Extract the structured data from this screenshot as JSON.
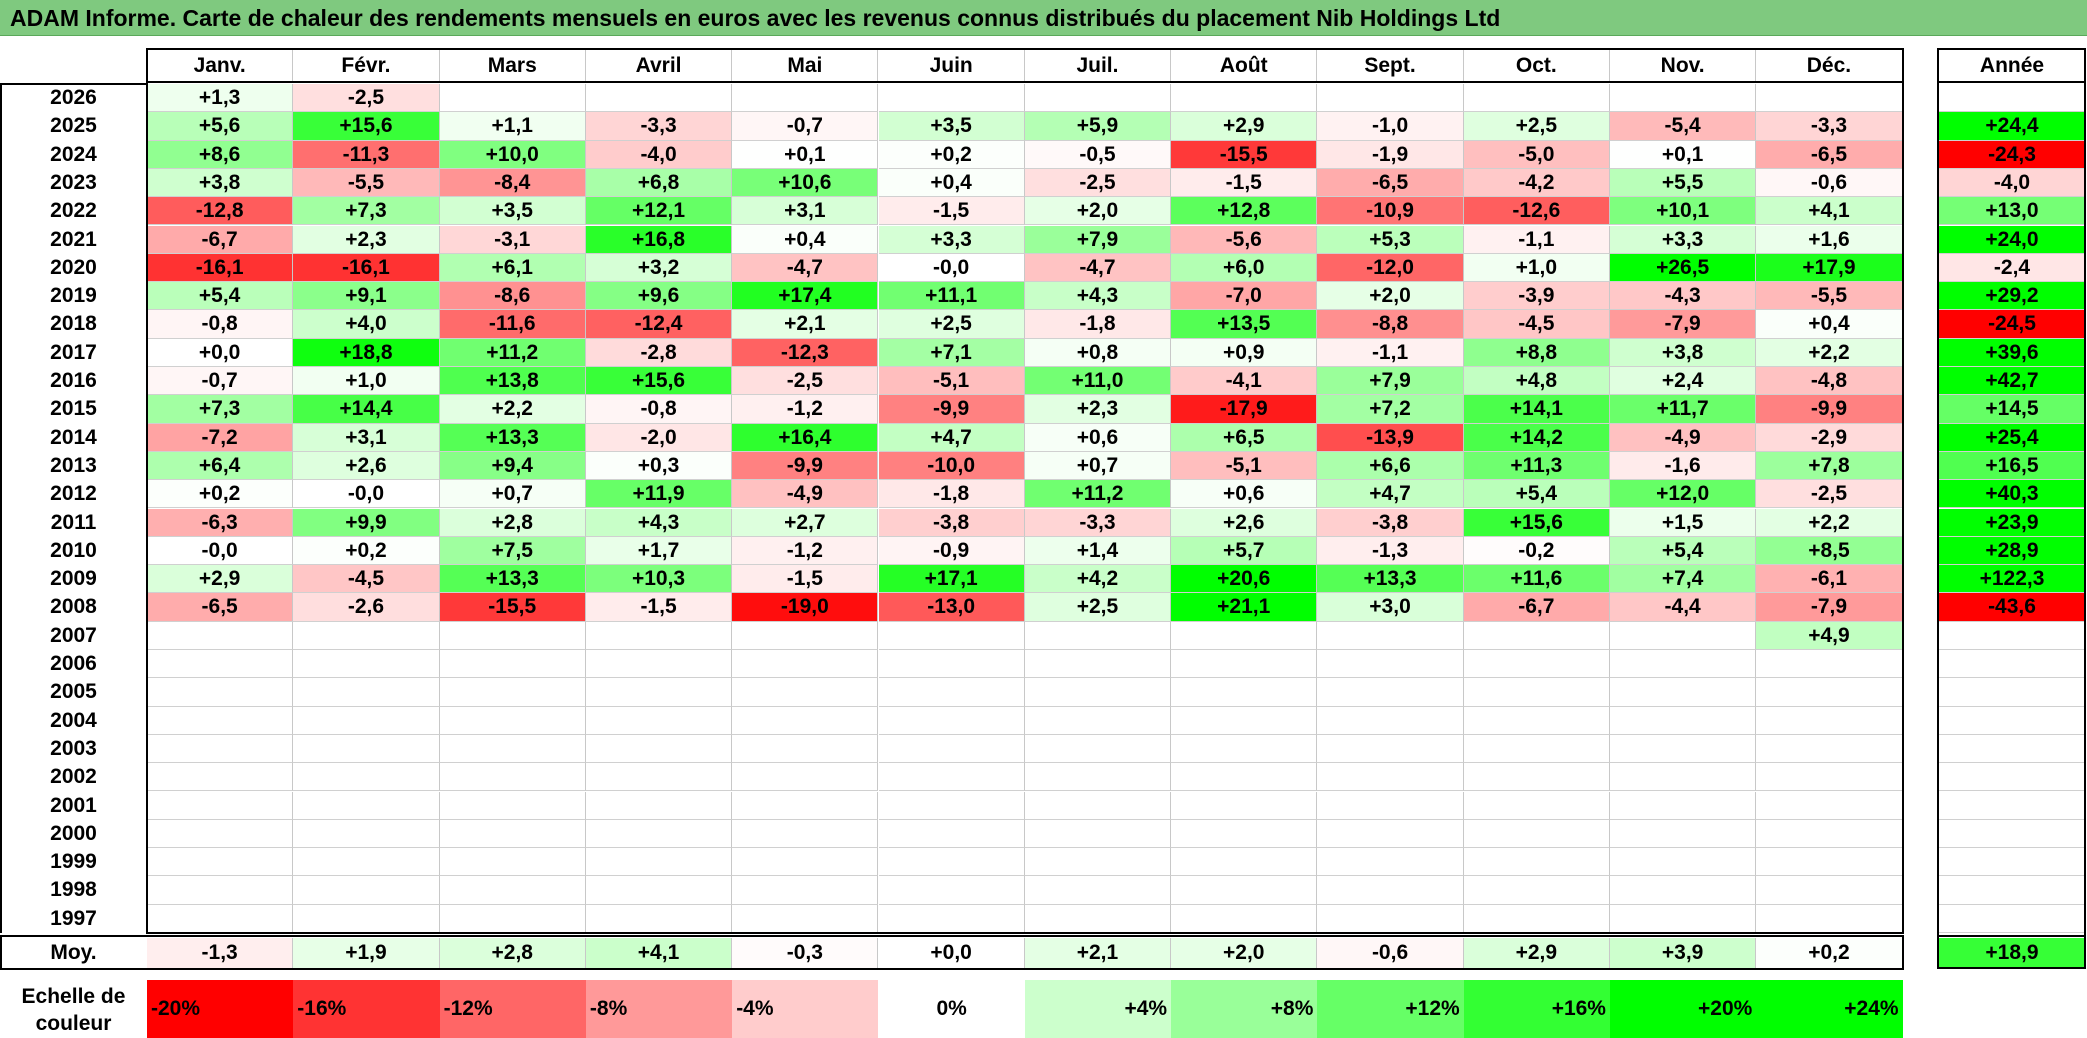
{
  "title": "ADAM Informe. Carte de chaleur des rendements mensuels en euros avec les revenus connus distribués du placement Nib Holdings Ltd",
  "year_header": "Année",
  "average_label": "Moy.",
  "scale_label_line1": "Echelle de",
  "scale_label_line2": "couleur",
  "colors": {
    "title_bg": "#7fc97f",
    "max_red": "#ff0000",
    "max_green": "#00ff00",
    "neutral": "#ffffff"
  },
  "chart_data": {
    "type": "heatmap",
    "title": "ADAM Informe. Carte de chaleur des rendements mensuels en euros avec les revenus connus distribués du placement Nib Holdings Ltd",
    "months": [
      "Janv.",
      "Févr.",
      "Mars",
      "Avril",
      "Mai",
      "Juin",
      "Juil.",
      "Août",
      "Sept.",
      "Oct.",
      "Nov.",
      "Déc."
    ],
    "years": [
      "2026",
      "2025",
      "2024",
      "2023",
      "2022",
      "2021",
      "2020",
      "2019",
      "2018",
      "2017",
      "2016",
      "2015",
      "2014",
      "2013",
      "2012",
      "2011",
      "2010",
      "2009",
      "2008",
      "2007",
      "2006",
      "2005",
      "2004",
      "2003",
      "2002",
      "2001",
      "2000",
      "1999",
      "1998",
      "1997"
    ],
    "values": [
      [
        "+1,3",
        "-2,5",
        "",
        "",
        "",
        "",
        "",
        "",
        "",
        "",
        "",
        ""
      ],
      [
        "+5,6",
        "+15,6",
        "+1,1",
        "-3,3",
        "-0,7",
        "+3,5",
        "+5,9",
        "+2,9",
        "-1,0",
        "+2,5",
        "-5,4",
        "-3,3"
      ],
      [
        "+8,6",
        "-11,3",
        "+10,0",
        "-4,0",
        "+0,1",
        "+0,2",
        "-0,5",
        "-15,5",
        "-1,9",
        "-5,0",
        "+0,1",
        "-6,5"
      ],
      [
        "+3,8",
        "-5,5",
        "-8,4",
        "+6,8",
        "+10,6",
        "+0,4",
        "-2,5",
        "-1,5",
        "-6,5",
        "-4,2",
        "+5,5",
        "-0,6"
      ],
      [
        "-12,8",
        "+7,3",
        "+3,5",
        "+12,1",
        "+3,1",
        "-1,5",
        "+2,0",
        "+12,8",
        "-10,9",
        "-12,6",
        "+10,1",
        "+4,1"
      ],
      [
        "-6,7",
        "+2,3",
        "-3,1",
        "+16,8",
        "+0,4",
        "+3,3",
        "+7,9",
        "-5,6",
        "+5,3",
        "-1,1",
        "+3,3",
        "+1,6"
      ],
      [
        "-16,1",
        "-16,1",
        "+6,1",
        "+3,2",
        "-4,7",
        "-0,0",
        "-4,7",
        "+6,0",
        "-12,0",
        "+1,0",
        "+26,5",
        "+17,9"
      ],
      [
        "+5,4",
        "+9,1",
        "-8,6",
        "+9,6",
        "+17,4",
        "+11,1",
        "+4,3",
        "-7,0",
        "+2,0",
        "-3,9",
        "-4,3",
        "-5,5"
      ],
      [
        "-0,8",
        "+4,0",
        "-11,6",
        "-12,4",
        "+2,1",
        "+2,5",
        "-1,8",
        "+13,5",
        "-8,8",
        "-4,5",
        "-7,9",
        "+0,4"
      ],
      [
        "+0,0",
        "+18,8",
        "+11,2",
        "-2,8",
        "-12,3",
        "+7,1",
        "+0,8",
        "+0,9",
        "-1,1",
        "+8,8",
        "+3,8",
        "+2,2"
      ],
      [
        "-0,7",
        "+1,0",
        "+13,8",
        "+15,6",
        "-2,5",
        "-5,1",
        "+11,0",
        "-4,1",
        "+7,9",
        "+4,8",
        "+2,4",
        "-4,8"
      ],
      [
        "+7,3",
        "+14,4",
        "+2,2",
        "-0,8",
        "-1,2",
        "-9,9",
        "+2,3",
        "-17,9",
        "+7,2",
        "+14,1",
        "+11,7",
        "-9,9"
      ],
      [
        "-7,2",
        "+3,1",
        "+13,3",
        "-2,0",
        "+16,4",
        "+4,7",
        "+0,6",
        "+6,5",
        "-13,9",
        "+14,2",
        "-4,9",
        "-2,9"
      ],
      [
        "+6,4",
        "+2,6",
        "+9,4",
        "+0,3",
        "-9,9",
        "-10,0",
        "+0,7",
        "-5,1",
        "+6,6",
        "+11,3",
        "-1,6",
        "+7,8"
      ],
      [
        "+0,2",
        "-0,0",
        "+0,7",
        "+11,9",
        "-4,9",
        "-1,8",
        "+11,2",
        "+0,6",
        "+4,7",
        "+5,4",
        "+12,0",
        "-2,5"
      ],
      [
        "-6,3",
        "+9,9",
        "+2,8",
        "+4,3",
        "+2,7",
        "-3,8",
        "-3,3",
        "+2,6",
        "-3,8",
        "+15,6",
        "+1,5",
        "+2,2"
      ],
      [
        "-0,0",
        "+0,2",
        "+7,5",
        "+1,7",
        "-1,2",
        "-0,9",
        "+1,4",
        "+5,7",
        "-1,3",
        "-0,2",
        "+5,4",
        "+8,5"
      ],
      [
        "+2,9",
        "-4,5",
        "+13,3",
        "+10,3",
        "-1,5",
        "+17,1",
        "+4,2",
        "+20,6",
        "+13,3",
        "+11,6",
        "+7,4",
        "-6,1"
      ],
      [
        "-6,5",
        "-2,6",
        "-15,5",
        "-1,5",
        "-19,0",
        "-13,0",
        "+2,5",
        "+21,1",
        "+3,0",
        "-6,7",
        "-4,4",
        "-7,9"
      ],
      [
        "",
        "",
        "",
        "",
        "",
        "",
        "",
        "",
        "",
        "",
        "",
        "+4,9"
      ],
      [
        "",
        "",
        "",
        "",
        "",
        "",
        "",
        "",
        "",
        "",
        "",
        ""
      ],
      [
        "",
        "",
        "",
        "",
        "",
        "",
        "",
        "",
        "",
        "",
        "",
        ""
      ],
      [
        "",
        "",
        "",
        "",
        "",
        "",
        "",
        "",
        "",
        "",
        "",
        ""
      ],
      [
        "",
        "",
        "",
        "",
        "",
        "",
        "",
        "",
        "",
        "",
        "",
        ""
      ],
      [
        "",
        "",
        "",
        "",
        "",
        "",
        "",
        "",
        "",
        "",
        "",
        ""
      ],
      [
        "",
        "",
        "",
        "",
        "",
        "",
        "",
        "",
        "",
        "",
        "",
        ""
      ],
      [
        "",
        "",
        "",
        "",
        "",
        "",
        "",
        "",
        "",
        "",
        "",
        ""
      ],
      [
        "",
        "",
        "",
        "",
        "",
        "",
        "",
        "",
        "",
        "",
        "",
        ""
      ],
      [
        "",
        "",
        "",
        "",
        "",
        "",
        "",
        "",
        "",
        "",
        "",
        ""
      ],
      [
        "",
        "",
        "",
        "",
        "",
        "",
        "",
        "",
        "",
        "",
        "",
        ""
      ]
    ],
    "annual": [
      "",
      "+24,4",
      "-24,3",
      "-4,0",
      "+13,0",
      "+24,0",
      "-2,4",
      "+29,2",
      "-24,5",
      "+39,6",
      "+42,7",
      "+14,5",
      "+25,4",
      "+16,5",
      "+40,3",
      "+23,9",
      "+28,9",
      "+122,3",
      "-43,6",
      "",
      "",
      "",
      "",
      "",
      "",
      "",
      "",
      "",
      "",
      ""
    ],
    "averages": [
      "-1,3",
      "+1,9",
      "+2,8",
      "+4,1",
      "-0,3",
      "+0,0",
      "+2,1",
      "+2,0",
      "-0,6",
      "+2,9",
      "+3,9",
      "+0,2"
    ],
    "average_annual": "+18,9",
    "scale": [
      "-20%",
      "-16%",
      "-12%",
      "-8%",
      "-4%",
      "0%",
      "+4%",
      "+8%",
      "+12%",
      "+16%",
      "+20%",
      "+24%"
    ],
    "scale_values": [
      -20,
      -16,
      -12,
      -8,
      -4,
      0,
      4,
      8,
      12,
      16,
      20,
      24
    ]
  }
}
